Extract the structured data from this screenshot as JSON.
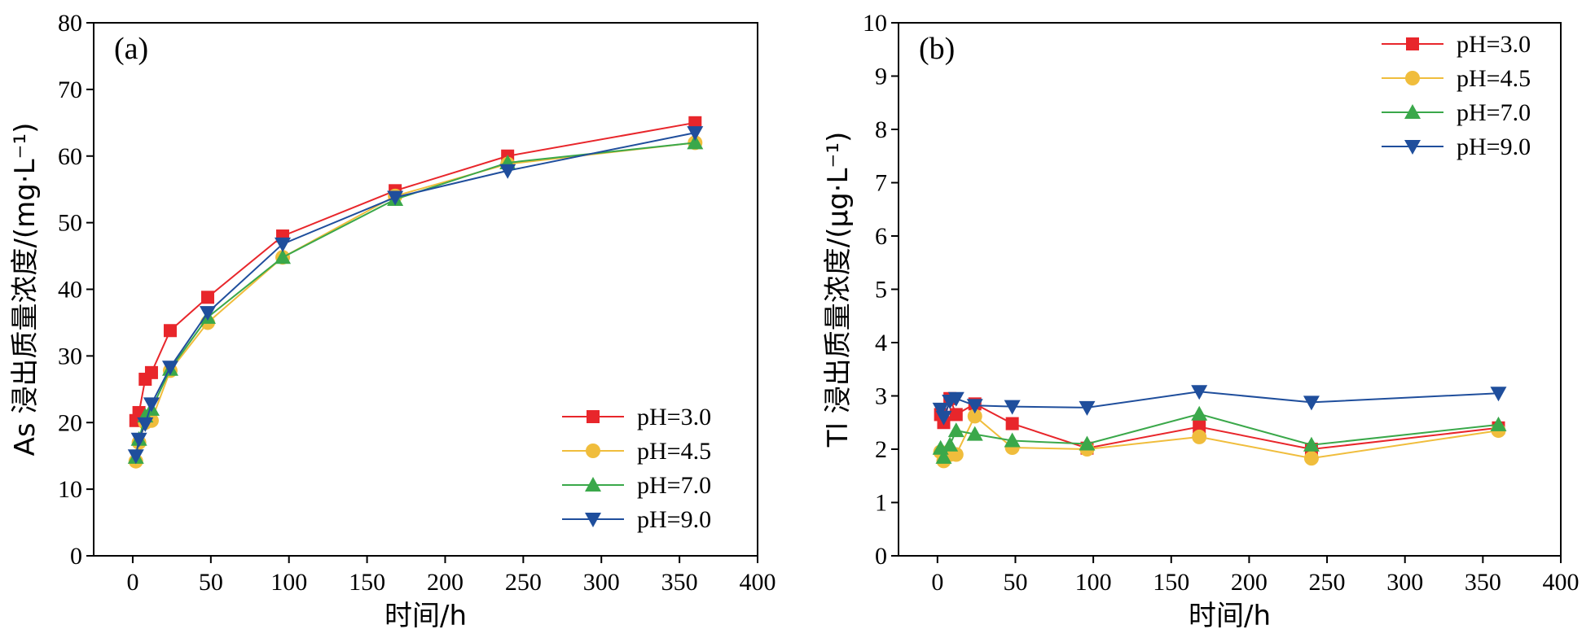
{
  "chart_data": [
    {
      "type": "line",
      "panel_label": "(a)",
      "xlabel": "时间/h",
      "ylabel": "As 浸出质量浓度/(mg·L⁻¹)",
      "xlim": [
        -25,
        400
      ],
      "ylim": [
        0,
        80
      ],
      "xticks": [
        0,
        50,
        100,
        150,
        200,
        250,
        300,
        350,
        400
      ],
      "yticks": [
        0,
        10,
        20,
        30,
        40,
        50,
        60,
        70,
        80
      ],
      "legend_position": "lower-right",
      "grid": false,
      "series": [
        {
          "name": "pH=3.0",
          "color": "#e8262b",
          "marker": "square",
          "x": [
            2,
            4,
            8,
            12,
            24,
            48,
            96,
            168,
            240,
            360
          ],
          "y": [
            20.3,
            21.5,
            26.5,
            27.5,
            33.8,
            38.8,
            48.0,
            54.8,
            60.0,
            65.0
          ]
        },
        {
          "name": "pH=4.5",
          "color": "#f0bd3c",
          "marker": "circle",
          "x": [
            2,
            4,
            8,
            12,
            24,
            48,
            96,
            168,
            240,
            360
          ],
          "y": [
            14.2,
            17.0,
            20.0,
            20.3,
            27.8,
            35.0,
            44.8,
            54.0,
            58.8,
            62.0
          ]
        },
        {
          "name": "pH=7.0",
          "color": "#3aa84a",
          "marker": "triangle-up",
          "x": [
            2,
            4,
            8,
            12,
            24,
            48,
            96,
            168,
            240,
            360
          ],
          "y": [
            14.8,
            17.5,
            21.0,
            22.0,
            28.0,
            35.8,
            44.8,
            53.5,
            59.0,
            62.0
          ]
        },
        {
          "name": "pH=9.0",
          "color": "#1f4e9c",
          "marker": "triangle-down",
          "x": [
            2,
            4,
            8,
            12,
            24,
            48,
            96,
            168,
            240,
            360
          ],
          "y": [
            15.0,
            17.5,
            19.8,
            22.8,
            28.3,
            36.5,
            46.8,
            53.8,
            57.8,
            63.5
          ]
        }
      ]
    },
    {
      "type": "line",
      "panel_label": "(b)",
      "xlabel": "时间/h",
      "ylabel": "Tl 浸出质量浓度/(μg·L⁻¹)",
      "xlim": [
        -25,
        400
      ],
      "ylim": [
        0,
        10
      ],
      "xticks": [
        0,
        50,
        100,
        150,
        200,
        250,
        300,
        350,
        400
      ],
      "yticks": [
        0,
        1,
        2,
        3,
        4,
        5,
        6,
        7,
        8,
        9,
        10
      ],
      "legend_position": "top-right",
      "grid": false,
      "series": [
        {
          "name": "pH=3.0",
          "color": "#e8262b",
          "marker": "square",
          "x": [
            2,
            4,
            8,
            12,
            24,
            48,
            96,
            168,
            240,
            360
          ],
          "y": [
            2.65,
            2.5,
            2.95,
            2.65,
            2.85,
            2.48,
            2.02,
            2.42,
            2.0,
            2.4
          ]
        },
        {
          "name": "pH=4.5",
          "color": "#f0bd3c",
          "marker": "circle",
          "x": [
            2,
            4,
            8,
            12,
            24,
            48,
            96,
            168,
            240,
            360
          ],
          "y": [
            1.95,
            1.78,
            1.9,
            1.9,
            2.62,
            2.03,
            2.0,
            2.23,
            1.83,
            2.35
          ]
        },
        {
          "name": "pH=7.0",
          "color": "#3aa84a",
          "marker": "triangle-up",
          "x": [
            2,
            4,
            8,
            12,
            24,
            48,
            96,
            168,
            240,
            360
          ],
          "y": [
            2.02,
            1.85,
            2.08,
            2.35,
            2.28,
            2.16,
            2.1,
            2.66,
            2.08,
            2.46
          ]
        },
        {
          "name": "pH=9.0",
          "color": "#1f4e9c",
          "marker": "triangle-down",
          "x": [
            2,
            4,
            8,
            12,
            24,
            48,
            96,
            168,
            240,
            360
          ],
          "y": [
            2.75,
            2.6,
            2.9,
            2.95,
            2.82,
            2.8,
            2.78,
            3.08,
            2.88,
            3.05
          ]
        }
      ]
    }
  ]
}
